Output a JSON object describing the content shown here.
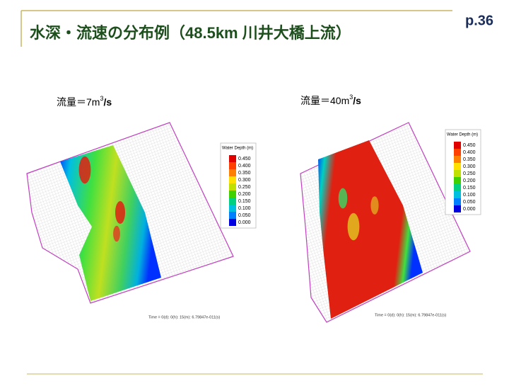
{
  "header": {
    "title": "水深・流速の分布例（48.5km 川井大橋上流）",
    "page": "p.36"
  },
  "panels": [
    {
      "label": {
        "prefix": "流量＝7m",
        "sup": "3",
        "suffix": "/s"
      },
      "legend": {
        "title": "Water Depth (m)",
        "levels": [
          "0.450",
          "0.400",
          "0.350",
          "0.300",
          "0.250",
          "0.200",
          "0.150",
          "0.100",
          "0.050",
          "0.000"
        ]
      },
      "time": "Time = 0(d): 0(h): 15(m): 6.79847e-011(s)"
    },
    {
      "label": {
        "prefix": "流量＝40m",
        "sup": "3",
        "suffix": "/s"
      },
      "legend": {
        "title": "Water Depth (m)",
        "levels": [
          "0.450",
          "0.400",
          "0.350",
          "0.300",
          "0.250",
          "0.200",
          "0.150",
          "0.100",
          "0.050",
          "0.000"
        ]
      },
      "time": "Time = 0(d): 0(h): 15(m): 6.79847e-011(s)"
    }
  ]
}
